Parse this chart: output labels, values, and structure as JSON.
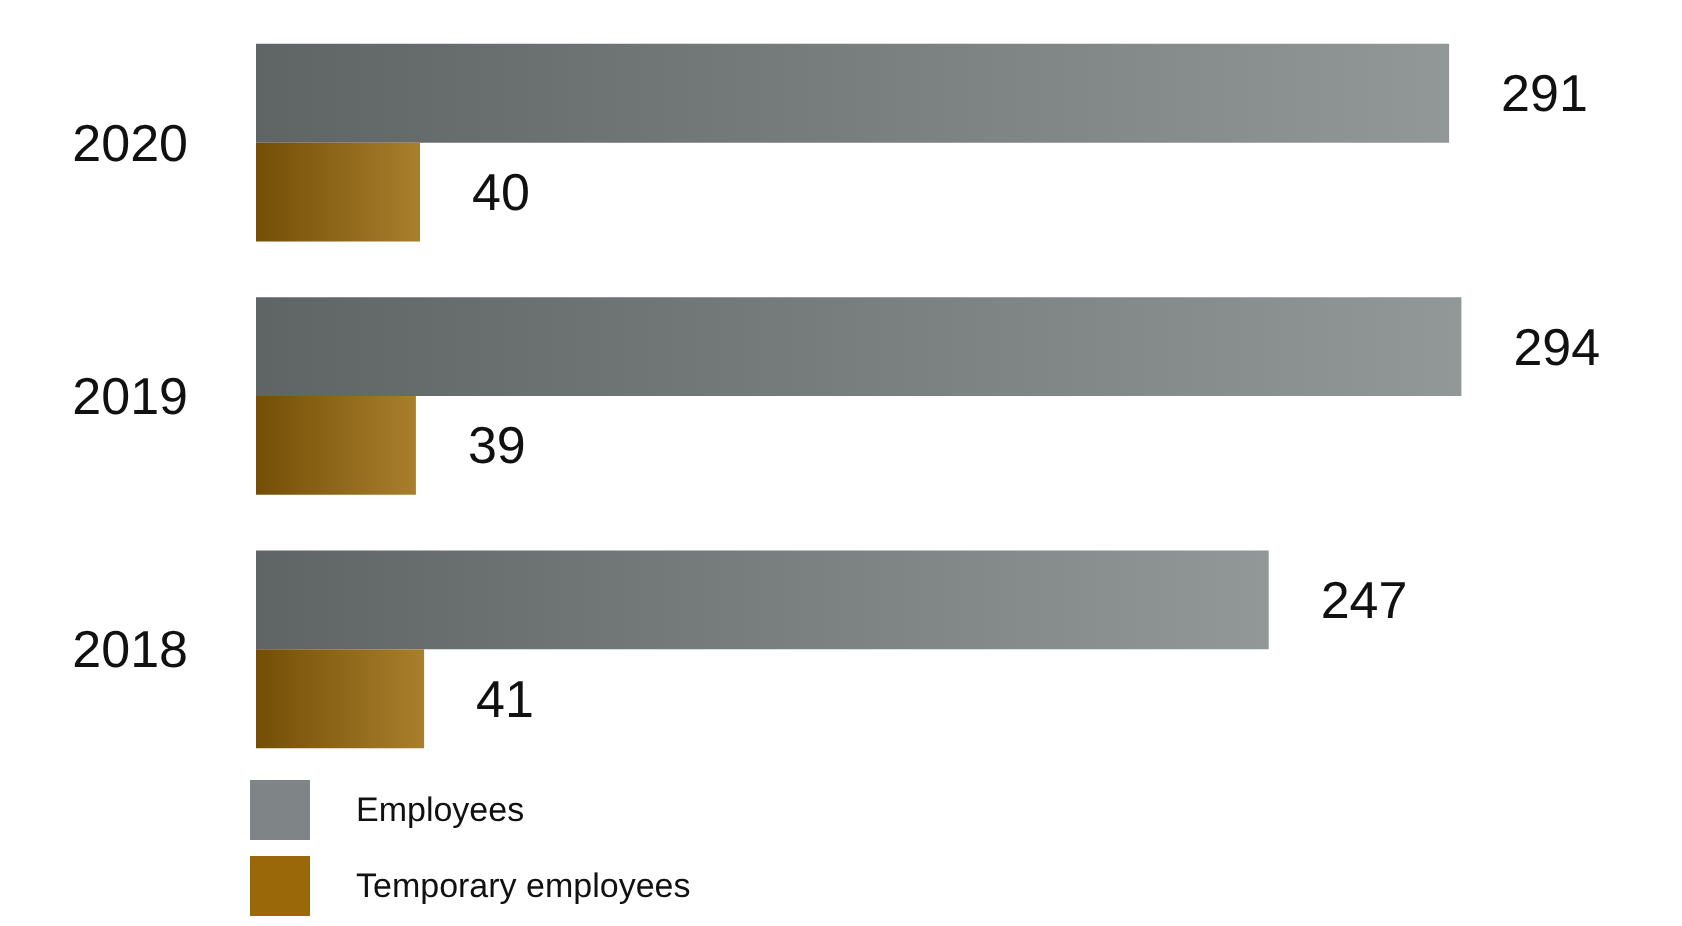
{
  "chart_data": {
    "type": "bar",
    "orientation": "horizontal",
    "categories": [
      "2020",
      "2019",
      "2018"
    ],
    "series": [
      {
        "name": "Employees",
        "color": "#7f8586",
        "values": [
          291,
          294,
          247
        ]
      },
      {
        "name": "Temporary employees",
        "color": "#9a6808",
        "values": [
          40,
          39,
          41
        ]
      }
    ],
    "data_labels": true,
    "legend": "bottom left"
  }
}
